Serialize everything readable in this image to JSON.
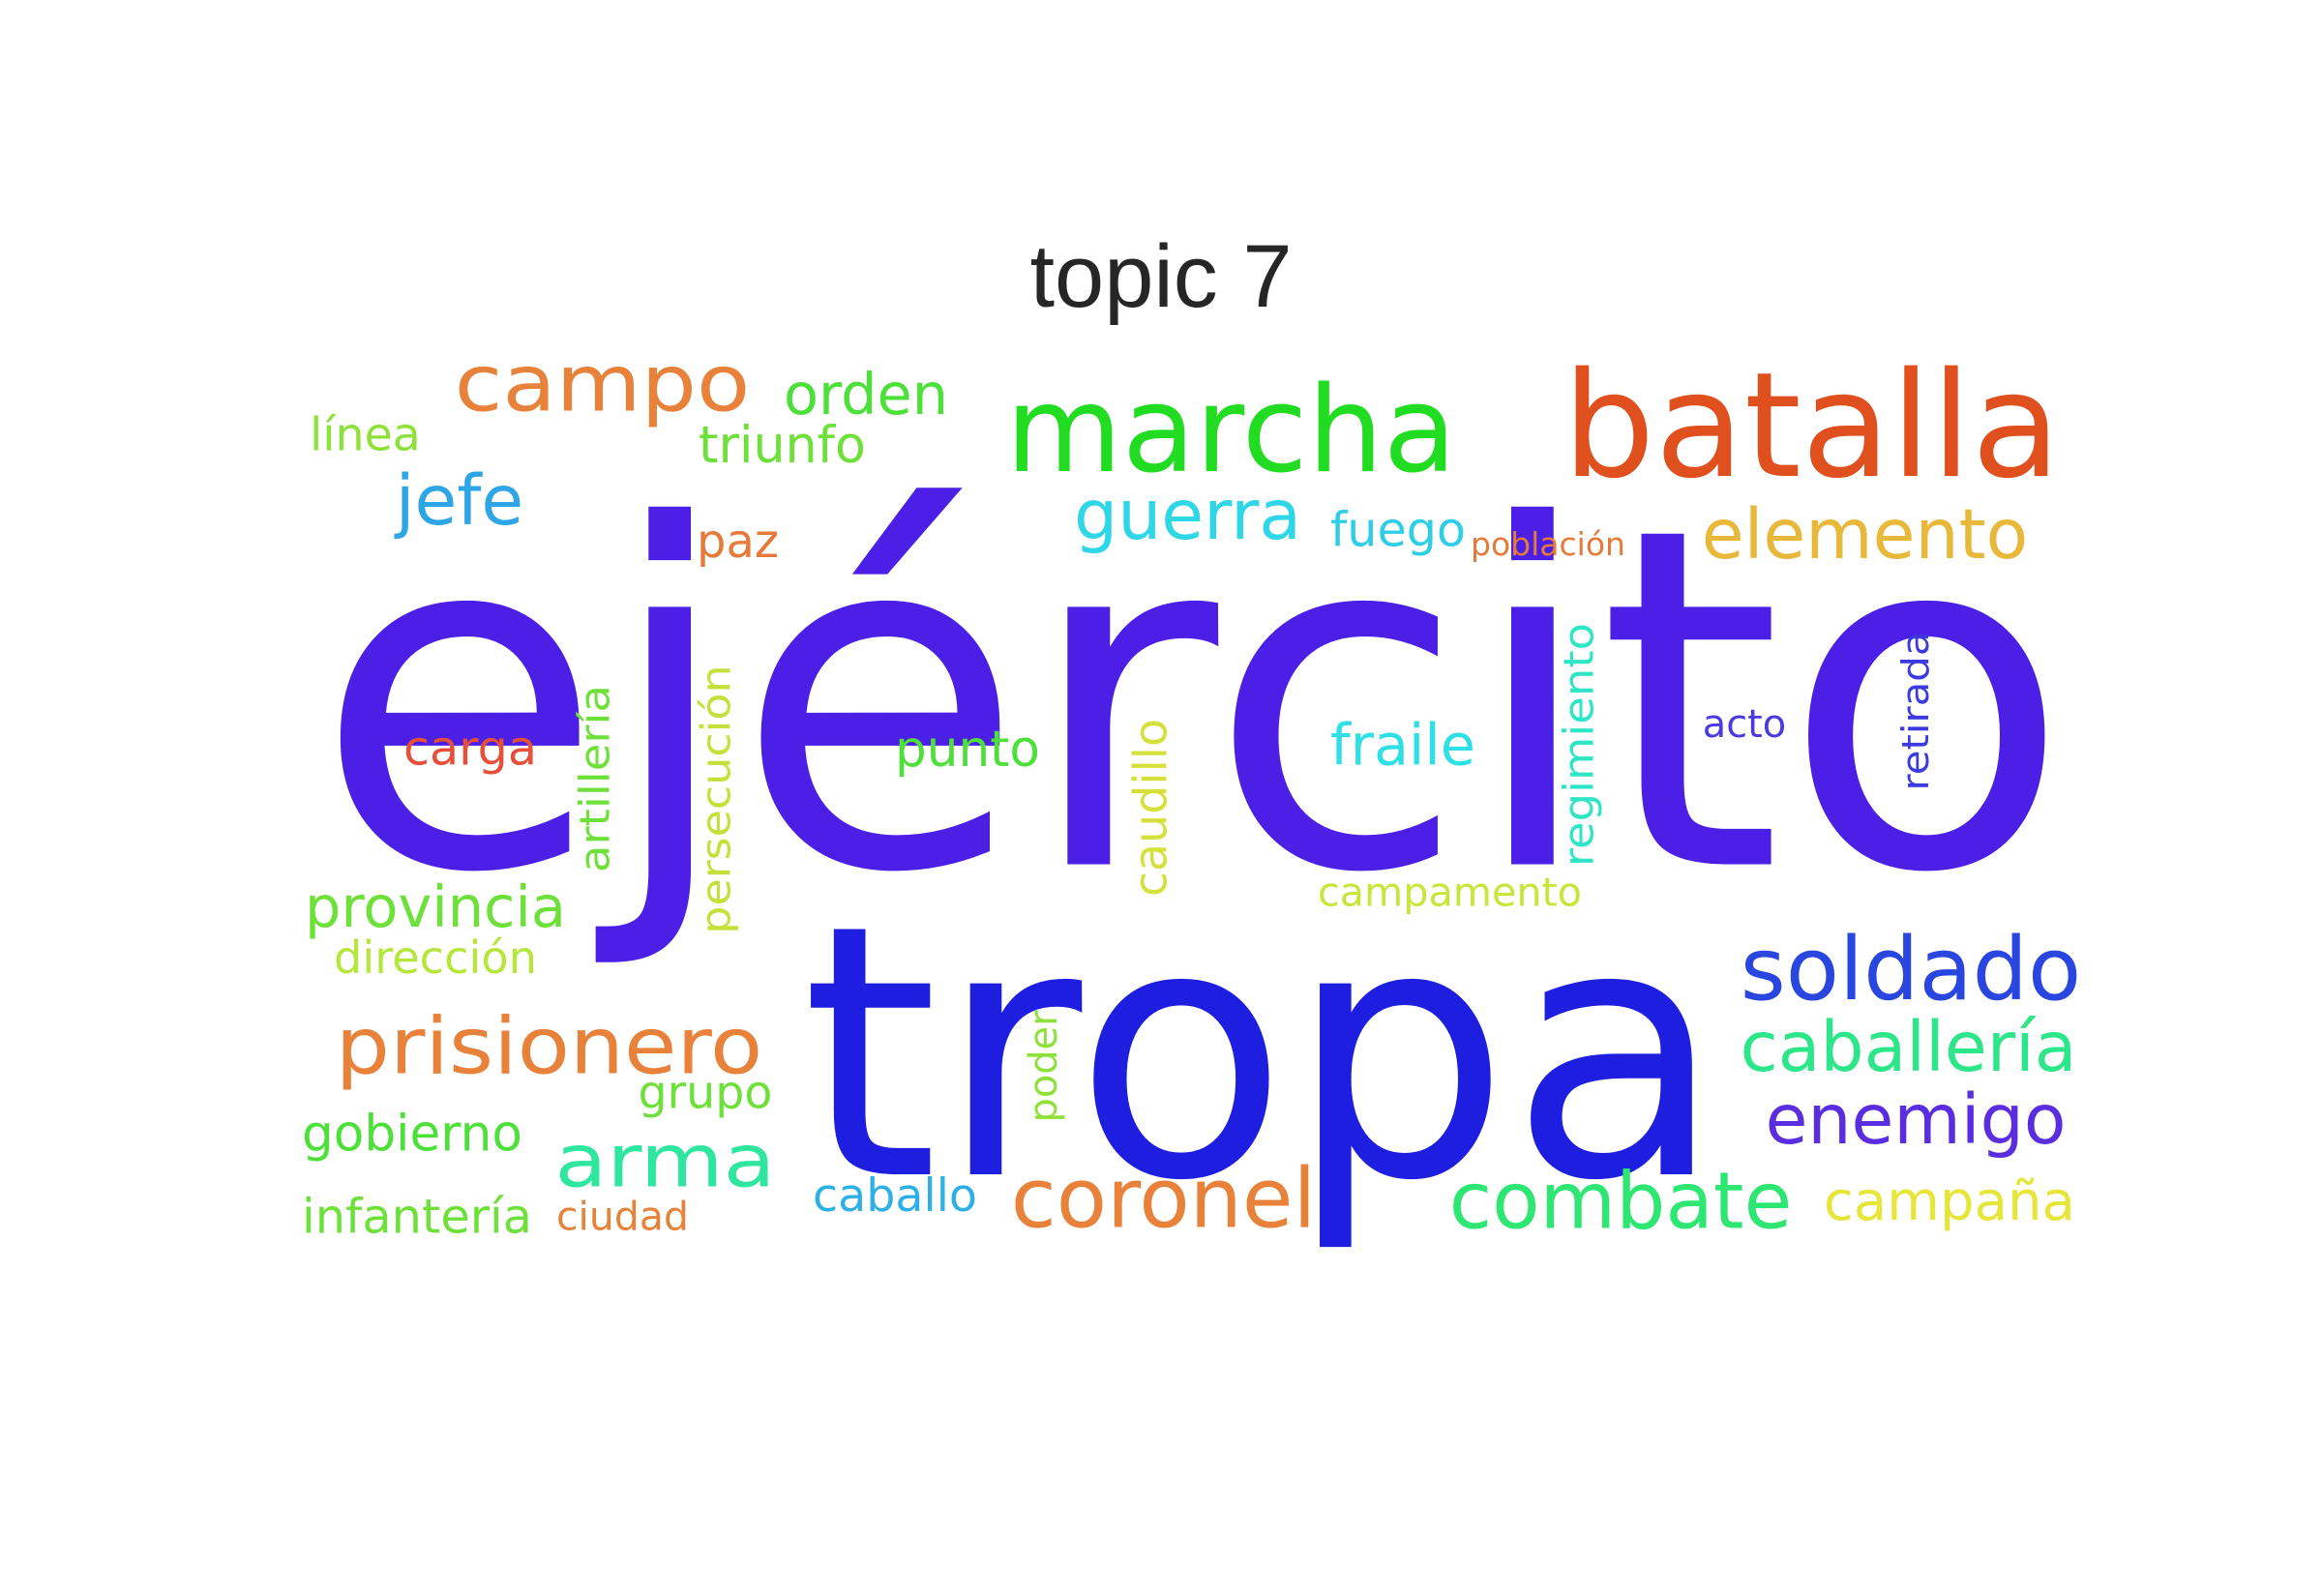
{
  "title": "topic 7",
  "words": [
    {
      "text": "ejército",
      "color": "#4b1fe6"
    },
    {
      "text": "tropa",
      "color": "#1e1ee0"
    },
    {
      "text": "batalla",
      "color": "#e0501e"
    },
    {
      "text": "marcha",
      "color": "#22dc22"
    },
    {
      "text": "campo",
      "color": "#e8823a"
    },
    {
      "text": "soldado",
      "color": "#2a46e0"
    },
    {
      "text": "prisionero",
      "color": "#e8823a"
    },
    {
      "text": "coronel",
      "color": "#e8823a"
    },
    {
      "text": "combate",
      "color": "#2ee672"
    },
    {
      "text": "elemento",
      "color": "#e8b83a"
    },
    {
      "text": "caballería",
      "color": "#2ee68a"
    },
    {
      "text": "enemigo",
      "color": "#5a2ee0"
    },
    {
      "text": "arma",
      "color": "#2ee6a0"
    },
    {
      "text": "guerra",
      "color": "#2ed6e6"
    },
    {
      "text": "orden",
      "color": "#4ee03a"
    },
    {
      "text": "jefe",
      "color": "#2ea6e6"
    },
    {
      "text": "fraile",
      "color": "#2ee0e6"
    },
    {
      "text": "provincia",
      "color": "#6ee03a"
    },
    {
      "text": "gobierno",
      "color": "#4ee03a"
    },
    {
      "text": "infantería",
      "color": "#6ee03a"
    },
    {
      "text": "punto",
      "color": "#4ee03a"
    },
    {
      "text": "triunfo",
      "color": "#6ee03a"
    },
    {
      "text": "fuego",
      "color": "#2ecee6"
    },
    {
      "text": "campaña",
      "color": "#e6e63a"
    },
    {
      "text": "caballo",
      "color": "#2eb0e6"
    },
    {
      "text": "carga",
      "color": "#e6503a"
    },
    {
      "text": "paz",
      "color": "#e67a3a"
    },
    {
      "text": "dirección",
      "color": "#b6e63a"
    },
    {
      "text": "línea",
      "color": "#8ee03a"
    },
    {
      "text": "grupo",
      "color": "#6ee03a"
    },
    {
      "text": "ciudad",
      "color": "#e6823a"
    },
    {
      "text": "población",
      "color": "#e67a3a"
    },
    {
      "text": "campamento",
      "color": "#c6e63a"
    },
    {
      "text": "acto",
      "color": "#4a3ae0"
    },
    {
      "text": "artillería",
      "color": "#6ee03a"
    },
    {
      "text": "persecución",
      "color": "#c6e03a"
    },
    {
      "text": "caudillo",
      "color": "#d6e03a"
    },
    {
      "text": "regimiento",
      "color": "#2ee6c6"
    },
    {
      "text": "retirada",
      "color": "#3a3ae0"
    },
    {
      "text": "poder",
      "color": "#8ee03a"
    }
  ]
}
